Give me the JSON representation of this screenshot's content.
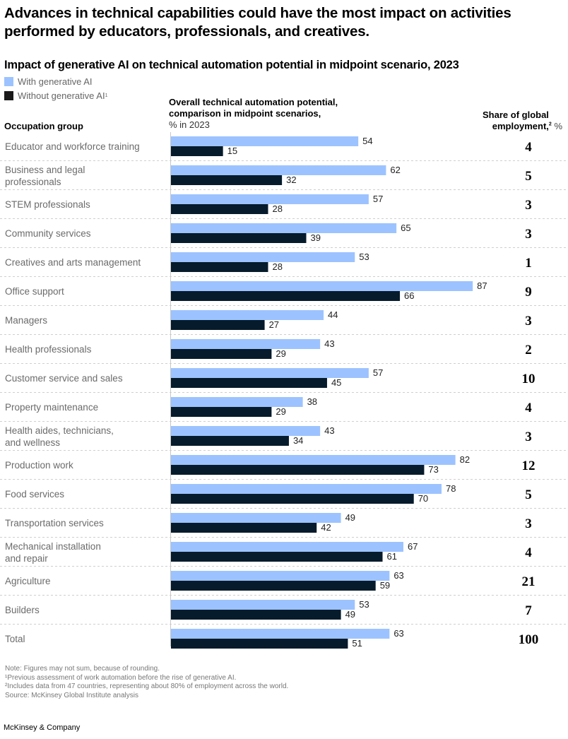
{
  "headline": "Advances in technical capabilities could have the most impact on activities performed by educators, professionals, and creatives.",
  "colors": {
    "with_ai": "#9cc3ff",
    "without_ai": "#061b2b",
    "gridline": "#cfcfcf"
  },
  "notes": [
    "Note: Figures may not sum, because of rounding.",
    "¹Previous assessment of work automation before the rise of generative AI.",
    "²Includes data from 47 countries, representing about 80% of employment across the world.",
    "Source: McKinsey Global Institute analysis"
  ],
  "brand": "McKinsey & Company",
  "chart_data": {
    "type": "bar",
    "orientation": "horizontal",
    "title": "Impact of generative AI on technical automation potential in midpoint scenario, 2023",
    "xlabel": "Overall technical automation potential, comparison in midpoint scenarios,",
    "xlabel_unit": "% in 2023",
    "category_header": "Occupation group",
    "share_header": "Share of global employment,",
    "share_header_sup": "2",
    "share_header_unit": " %",
    "xlim": [
      0,
      100
    ],
    "legend": {
      "placement": "top-left",
      "entries": [
        "With generative AI",
        "Without generative AI"
      ],
      "without_sup": "1"
    },
    "categories": [
      [
        "Educator and workforce training"
      ],
      [
        "Business and legal",
        "professionals"
      ],
      [
        "STEM professionals"
      ],
      [
        "Community services"
      ],
      [
        "Creatives and arts management"
      ],
      [
        "Office support"
      ],
      [
        "Managers"
      ],
      [
        "Health professionals"
      ],
      [
        "Customer service and sales"
      ],
      [
        "Property maintenance"
      ],
      [
        "Health aides, technicians,",
        "and wellness"
      ],
      [
        "Production work"
      ],
      [
        "Food services"
      ],
      [
        "Transportation services"
      ],
      [
        "Mechanical installation",
        "and repair"
      ],
      [
        "Agriculture"
      ],
      [
        "Builders"
      ],
      [
        "Total"
      ]
    ],
    "series": [
      {
        "name": "With generative AI",
        "values": [
          54,
          62,
          57,
          65,
          53,
          87,
          44,
          43,
          57,
          38,
          43,
          82,
          78,
          49,
          67,
          63,
          53,
          63
        ]
      },
      {
        "name": "Without generative AI",
        "values": [
          15,
          32,
          28,
          39,
          28,
          66,
          27,
          29,
          45,
          29,
          34,
          73,
          70,
          42,
          61,
          59,
          49,
          51
        ]
      }
    ],
    "share_of_global_employment": [
      4,
      5,
      3,
      3,
      1,
      9,
      3,
      2,
      10,
      4,
      3,
      12,
      5,
      3,
      4,
      21,
      7,
      100
    ]
  }
}
